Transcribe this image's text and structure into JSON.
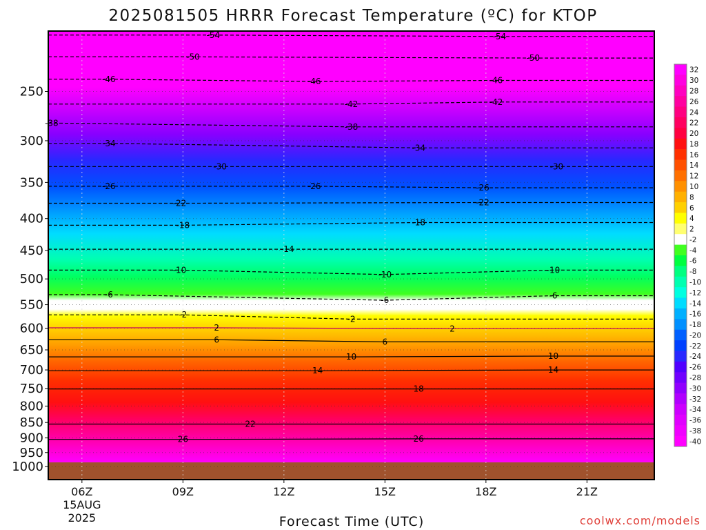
{
  "title": "2025081505 HRRR Forecast Temperature (ºC) for KTOP",
  "credit": "coolwx.com/models",
  "chart_data": {
    "type": "heatmap",
    "title": "2025081505 HRRR Forecast Temperature (ºC) for KTOP",
    "xlabel": "Forecast Time (UTC)",
    "ylabel": "",
    "x_ticks": [
      "06Z",
      "09Z",
      "12Z",
      "15Z",
      "18Z",
      "21Z"
    ],
    "x_date_label": [
      "15AUG",
      "2025"
    ],
    "x_range_hours": [
      5,
      23
    ],
    "y_scale": "log-pressure",
    "y_range_hpa": [
      1050,
      200
    ],
    "y_ticks": [
      250,
      300,
      350,
      400,
      450,
      500,
      550,
      600,
      650,
      700,
      750,
      800,
      850,
      900,
      950,
      1000
    ],
    "grid": "dotted",
    "colorbar_ticks": [
      32,
      30,
      28,
      26,
      24,
      22,
      20,
      18,
      16,
      14,
      12,
      10,
      8,
      6,
      4,
      2,
      -2,
      -4,
      -6,
      -8,
      -10,
      -12,
      -14,
      -16,
      -18,
      -20,
      -22,
      -24,
      -26,
      -28,
      -30,
      -32,
      -34,
      -36,
      -38,
      -40
    ],
    "colors": {
      "ground": "#a0522d",
      "warm_max": "#ff00ff",
      "cold_max": "#ff00ff",
      "near_zero": "#ffffff"
    },
    "contour_labels": [
      {
        "value": -54,
        "hour": 9.9,
        "p": 203
      },
      {
        "value": -54,
        "hour": 18.4,
        "p": 204
      },
      {
        "value": -50,
        "hour": 9.3,
        "p": 220
      },
      {
        "value": -50,
        "hour": 19.4,
        "p": 221
      },
      {
        "value": -46,
        "hour": 6.8,
        "p": 239
      },
      {
        "value": -46,
        "hour": 12.9,
        "p": 241
      },
      {
        "value": -46,
        "hour": 18.3,
        "p": 240
      },
      {
        "value": -42,
        "hour": 14.0,
        "p": 262
      },
      {
        "value": -42,
        "hour": 18.3,
        "p": 260
      },
      {
        "value": -38,
        "hour": 5.1,
        "p": 281
      },
      {
        "value": -38,
        "hour": 14.0,
        "p": 285
      },
      {
        "value": -34,
        "hour": 6.8,
        "p": 303
      },
      {
        "value": -34,
        "hour": 16.0,
        "p": 308
      },
      {
        "value": -30,
        "hour": 10.1,
        "p": 330
      },
      {
        "value": -30,
        "hour": 20.1,
        "p": 330
      },
      {
        "value": -26,
        "hour": 6.8,
        "p": 355
      },
      {
        "value": -26,
        "hour": 12.9,
        "p": 355
      },
      {
        "value": -26,
        "hour": 17.9,
        "p": 357
      },
      {
        "value": -22,
        "hour": 8.9,
        "p": 378
      },
      {
        "value": -22,
        "hour": 17.9,
        "p": 377
      },
      {
        "value": -18,
        "hour": 9.0,
        "p": 410
      },
      {
        "value": -18,
        "hour": 16.0,
        "p": 406
      },
      {
        "value": -14,
        "hour": 12.1,
        "p": 448
      },
      {
        "value": -10,
        "hour": 8.9,
        "p": 484
      },
      {
        "value": -10,
        "hour": 15.0,
        "p": 492
      },
      {
        "value": -10,
        "hour": 20.0,
        "p": 484
      },
      {
        "value": -6,
        "hour": 6.8,
        "p": 530
      },
      {
        "value": -6,
        "hour": 15.0,
        "p": 541
      },
      {
        "value": -6,
        "hour": 20.0,
        "p": 532
      },
      {
        "value": -2,
        "hour": 9.0,
        "p": 571
      },
      {
        "value": -2,
        "hour": 14.0,
        "p": 580
      },
      {
        "value": 2,
        "hour": 10.0,
        "p": 599
      },
      {
        "value": 2,
        "hour": 17.0,
        "p": 601
      },
      {
        "value": 6,
        "hour": 10.0,
        "p": 626
      },
      {
        "value": 6,
        "hour": 15.0,
        "p": 631
      },
      {
        "value": 10,
        "hour": 14.0,
        "p": 667
      },
      {
        "value": 10,
        "hour": 20.0,
        "p": 665
      },
      {
        "value": 14,
        "hour": 13.0,
        "p": 702
      },
      {
        "value": 14,
        "hour": 20.0,
        "p": 700
      },
      {
        "value": 18,
        "hour": 16.0,
        "p": 751
      },
      {
        "value": 22,
        "hour": 11.0,
        "p": 855
      },
      {
        "value": 26,
        "hour": 9.0,
        "p": 905
      },
      {
        "value": 26,
        "hour": 16.0,
        "p": 903
      }
    ]
  }
}
